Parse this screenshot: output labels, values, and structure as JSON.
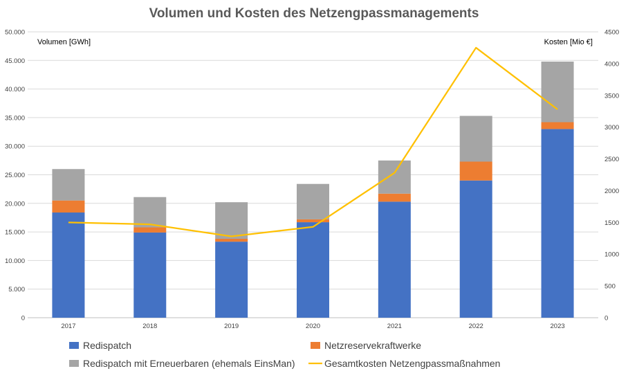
{
  "chart_data": {
    "type": "bar",
    "stacked": true,
    "title": "Volumen und Kosten des Netzengpassmanagements",
    "categories": [
      "2017",
      "2018",
      "2019",
      "2020",
      "2021",
      "2022",
      "2023"
    ],
    "y_left": {
      "label": "Volumen [GWh]",
      "range": [
        0,
        50000
      ],
      "ticks": [
        0,
        5000,
        10000,
        15000,
        20000,
        25000,
        30000,
        35000,
        40000,
        45000,
        50000
      ],
      "tick_labels": [
        "0",
        "5.000",
        "10.000",
        "15.000",
        "20.000",
        "25.000",
        "30.000",
        "35.000",
        "40.000",
        "45.000",
        "50.000"
      ]
    },
    "y_right": {
      "label": "Kosten [Mio €]",
      "range": [
        0,
        4500
      ],
      "ticks": [
        0,
        500,
        1000,
        1500,
        2000,
        2500,
        3000,
        3500,
        4000,
        4500
      ],
      "tick_labels": [
        "0",
        "500",
        "1000",
        "1500",
        "2000",
        "2500",
        "3000",
        "3500",
        "4000",
        "4500"
      ]
    },
    "grid": true,
    "legend_position": "bottom",
    "series": [
      {
        "name": "Redispatch",
        "kind": "bar",
        "axis": "left",
        "color": "#4472C4",
        "values": [
          18400,
          14900,
          13300,
          16700,
          20300,
          24000,
          33000
        ]
      },
      {
        "name": "Netzreservekraftwerke",
        "kind": "bar",
        "axis": "left",
        "color": "#ED7D31",
        "values": [
          2100,
          900,
          500,
          500,
          1400,
          3300,
          1200
        ]
      },
      {
        "name": "Redispatch mit Erneuerbaren (ehemals EinsMan)",
        "kind": "bar",
        "axis": "left",
        "color": "#A5A5A5",
        "values": [
          5500,
          5300,
          6400,
          6200,
          5800,
          8000,
          10600
        ]
      },
      {
        "name": "Gesamtkosten Netzengpassmaßnahmen",
        "kind": "line",
        "axis": "right",
        "color": "#FFC000",
        "values": [
          1500,
          1470,
          1280,
          1430,
          2280,
          4250,
          3280
        ]
      }
    ]
  }
}
